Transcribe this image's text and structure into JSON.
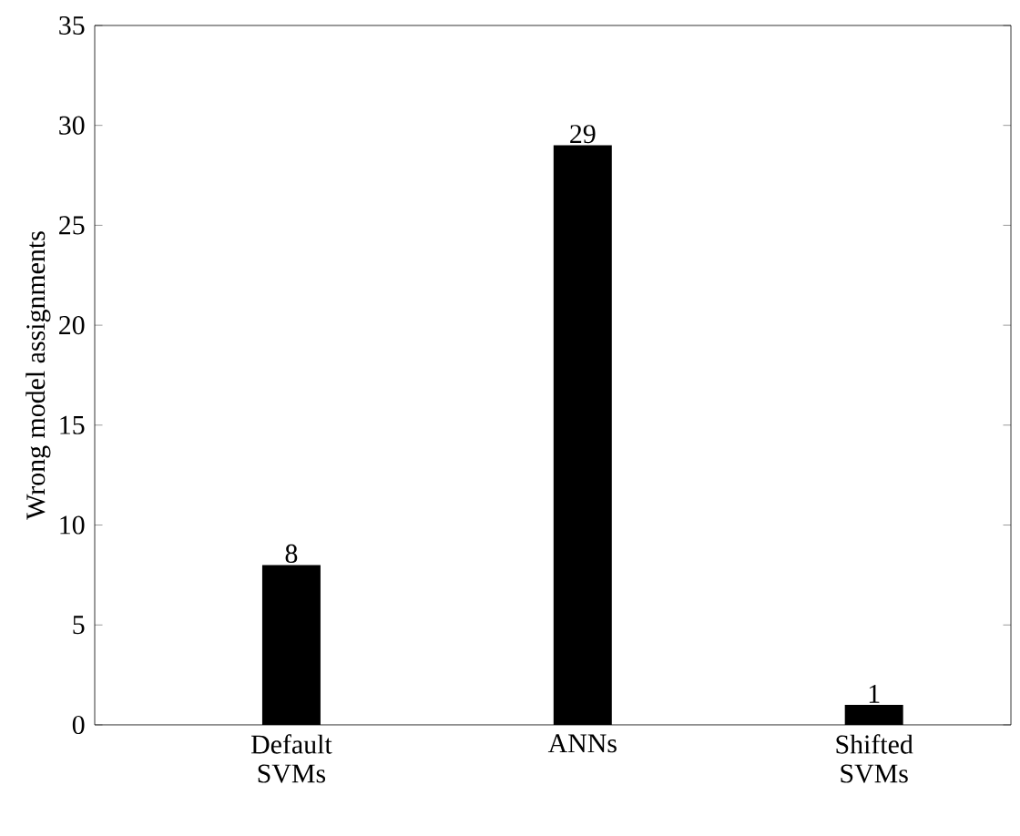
{
  "chart_data": {
    "type": "bar",
    "ylabel": "Wrong model assignments",
    "categories": [
      "Default SVMs",
      "ANNs",
      "Shifted SVMs"
    ],
    "values": [
      8,
      29,
      1
    ],
    "color": "#000000",
    "data_labels": true,
    "ylim": [
      0,
      35
    ],
    "yticks": [
      0,
      5,
      10,
      15,
      20,
      25,
      30,
      35
    ],
    "grid": false
  }
}
